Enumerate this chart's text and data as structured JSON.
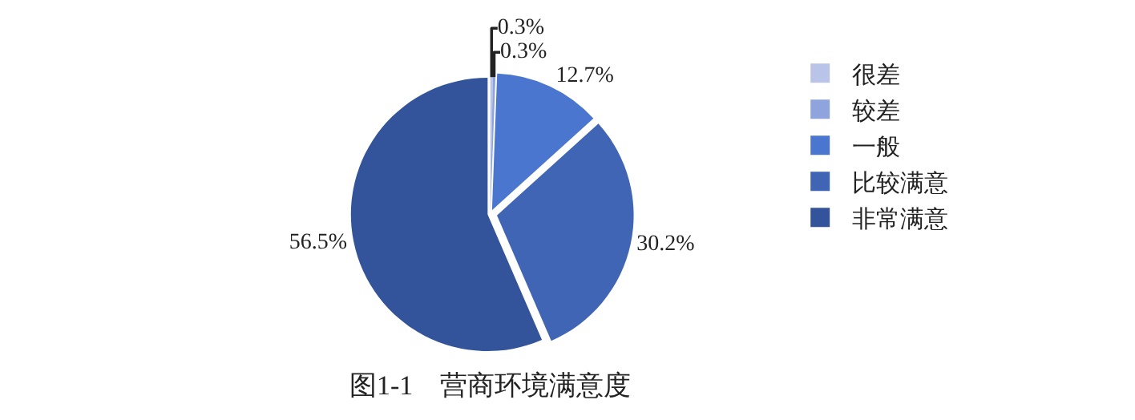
{
  "chart_data": {
    "type": "pie",
    "title": "图1-1　营商环境满意度",
    "categories": [
      "很差",
      "较差",
      "一般",
      "比较满意",
      "非常满意"
    ],
    "values": [
      0.3,
      0.3,
      12.7,
      30.2,
      56.5
    ],
    "value_labels": [
      "0.3%",
      "0.3%",
      "12.7%",
      "30.2%",
      "56.5%"
    ],
    "colors": [
      "#b9c4e8",
      "#8fa3dc",
      "#4a76cf",
      "#3f65b4",
      "#33549a"
    ],
    "legend": "right"
  }
}
